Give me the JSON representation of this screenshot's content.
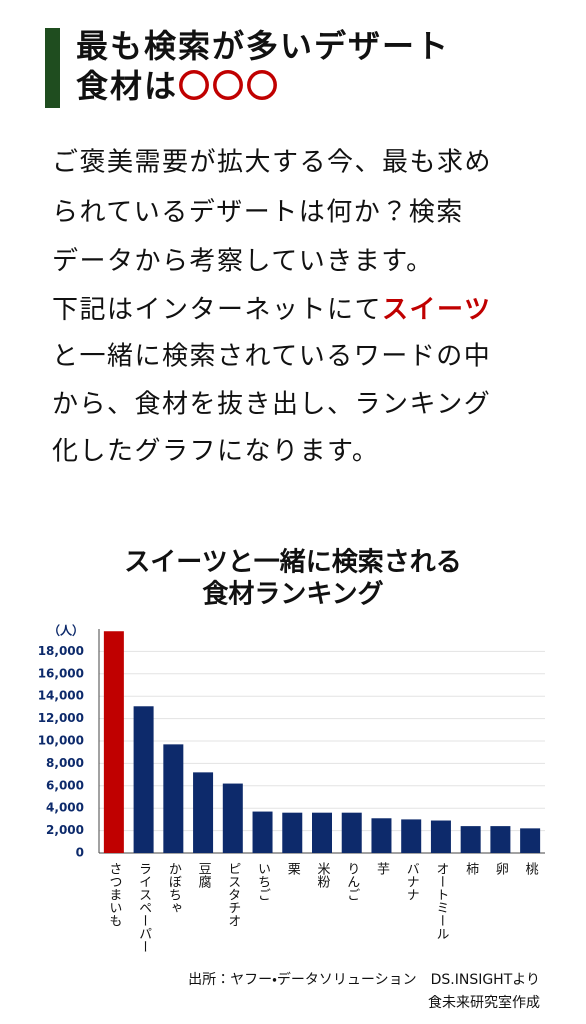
{
  "header": {
    "title_line1": "最も検索が多いデザート",
    "title_line2": "食材は",
    "title_highlight": "〇〇〇"
  },
  "body": {
    "lines": [
      "ご褒美需要が拡大する今、最も求め",
      "られているデザートは何か？検索",
      "データから考察していきます。"
    ],
    "line4": [
      "下記はインターネットにて",
      "スイーツ"
    ],
    "rest": [
      "と一緒に検索されているワードの中",
      "から、食材を抜き出し、ランキング",
      "化したグラフになります。"
    ]
  },
  "chart_data": {
    "type": "bar",
    "title": [
      "スイーツと一緒に検索される",
      "食材ランキング"
    ],
    "y_unit": "（人）",
    "categories": [
      "さつまいも",
      "ライスペーパー",
      "かぼちゃ",
      "豆腐",
      "ピスタチオ",
      "いちご",
      "栗",
      "米粉",
      "りんご",
      "芋",
      "バナナ",
      "オートミール",
      "柿",
      "卵",
      "桃"
    ],
    "values": [
      19800,
      13100,
      9700,
      7200,
      6200,
      3700,
      3600,
      3600,
      3600,
      3100,
      3000,
      2900,
      2400,
      2400,
      2200
    ],
    "colors": [
      "#c00000",
      "#0d2a6b",
      "#0d2a6b",
      "#0d2a6b",
      "#0d2a6b",
      "#0d2a6b",
      "#0d2a6b",
      "#0d2a6b",
      "#0d2a6b",
      "#0d2a6b",
      "#0d2a6b",
      "#0d2a6b",
      "#0d2a6b",
      "#0d2a6b",
      "#0d2a6b"
    ],
    "ylim": [
      0,
      20000
    ],
    "yticks": [
      0,
      {
        "value": 2000,
        "label": "2,000"
      },
      {
        "value": 4000,
        "label": "4,000"
      },
      {
        "value": 6000,
        "label": "6,000"
      },
      {
        "value": 8000,
        "label": "8,000"
      },
      {
        "value": 10000,
        "label": "10,000"
      },
      {
        "value": 12000,
        "label": "12,000"
      },
      {
        "value": 14000,
        "label": "14,000"
      },
      {
        "value": 16000,
        "label": "16,000"
      },
      {
        "value": 18000,
        "label": "18,000"
      }
    ],
    "grid": true
  },
  "source": [
    "出所：ヤフー・データソリューション　DS.INSIGHTより",
    "食未来研究室作成"
  ]
}
